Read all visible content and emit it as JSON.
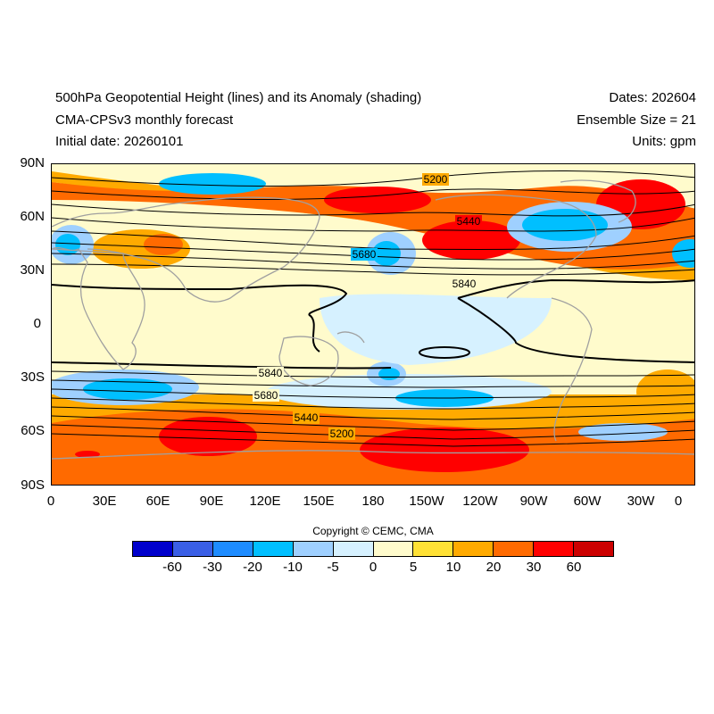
{
  "header": {
    "title": "500hPa Geopotential Height (lines) and its Anomaly (shading)",
    "model": "CMA-CPSv3 monthly forecast",
    "initial_date": "Initial date: 20260101",
    "dates": "Dates: 202604",
    "ensemble": "Ensemble Size = 21",
    "units": "Units: gpm"
  },
  "map": {
    "y_ticks": [
      "90N",
      "60N",
      "30N",
      "0",
      "30S",
      "60S",
      "90S"
    ],
    "x_ticks": [
      "0",
      "30E",
      "60E",
      "90E",
      "120E",
      "150E",
      "180",
      "150W",
      "120W",
      "90W",
      "60W",
      "30W",
      "0"
    ],
    "contour_labels": [
      "5200",
      "5440",
      "5680",
      "5840",
      "5840",
      "5680",
      "5440",
      "5200"
    ]
  },
  "copyright": "Copyright © CEMC, CMA",
  "colorbar": {
    "colors": [
      "#0000cc",
      "#3a5fe6",
      "#1e8cff",
      "#00bfff",
      "#9fd0ff",
      "#d6f1ff",
      "#fffbcc",
      "#ffe135",
      "#ffaa00",
      "#ff6a00",
      "#ff0000",
      "#cc0000"
    ],
    "labels": [
      "-60",
      "-30",
      "-20",
      "-10",
      "-5",
      "0",
      "5",
      "10",
      "20",
      "30",
      "60"
    ]
  }
}
